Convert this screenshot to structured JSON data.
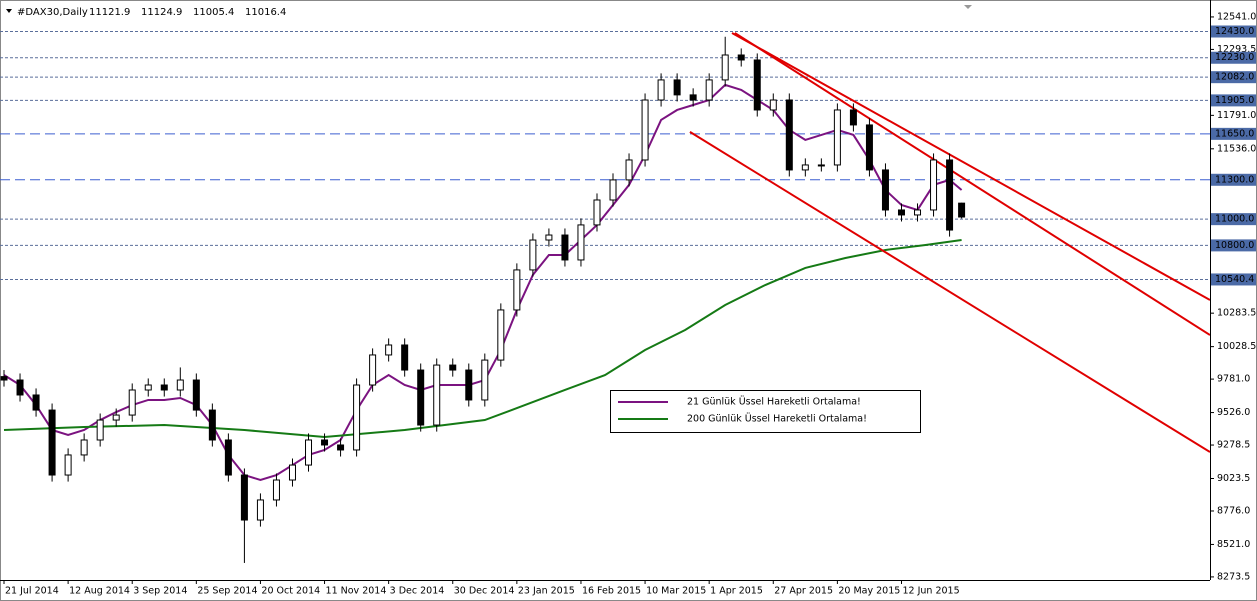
{
  "chart_data": {
    "type": "candlestick",
    "title": "#DAX30,Daily",
    "xlim": [
      -1,
      301
    ],
    "ylim": [
      8250,
      12632
    ],
    "x": [
      0,
      4,
      8,
      12,
      16,
      20,
      24,
      28,
      32,
      36,
      40,
      44,
      48,
      52,
      56,
      60,
      64,
      68,
      72,
      76,
      80,
      84,
      88,
      92,
      96,
      100,
      104,
      108,
      112,
      116,
      120,
      124,
      128,
      132,
      136,
      140,
      144,
      148,
      152,
      156,
      160,
      164,
      168,
      172,
      176,
      180,
      184,
      188,
      192,
      196,
      200,
      204,
      208,
      212,
      216,
      220,
      224,
      228,
      232,
      236,
      239
    ],
    "open": [
      9800,
      9774,
      9660,
      9545,
      9050,
      9203,
      9317,
      9469,
      9507,
      9698,
      9736,
      9698,
      9774,
      9545,
      9317,
      9050,
      8707,
      8860,
      9012,
      9126,
      9317,
      9279,
      9241,
      9736,
      9965,
      10041,
      9850,
      9431,
      9888,
      9850,
      9622,
      9926,
      10308,
      10613,
      10841,
      10879,
      10689,
      10956,
      11146,
      11299,
      11451,
      11908,
      12061,
      11947,
      11908,
      12061,
      12251,
      12213,
      11832,
      11908,
      11375,
      11413,
      11413,
      11832,
      11718,
      11375,
      11070,
      11032,
      11070,
      11451,
      11121.9
    ],
    "high": [
      9850,
      9824,
      9710,
      9595,
      9253,
      9367,
      9519,
      9557,
      9748,
      9786,
      9786,
      9870,
      9824,
      9595,
      9367,
      9100,
      8910,
      9062,
      9176,
      9367,
      9367,
      9329,
      9786,
      10015,
      10091,
      10091,
      9900,
      9938,
      9938,
      9900,
      9976,
      10358,
      10663,
      10891,
      10929,
      10929,
      11006,
      11196,
      11349,
      11501,
      11958,
      12111,
      12111,
      11997,
      12111,
      12390,
      12301,
      12263,
      11958,
      11958,
      11463,
      11463,
      11882,
      11882,
      11768,
      11425,
      11120,
      11120,
      11501,
      11501,
      11124.9
    ],
    "low": [
      9724,
      9610,
      9495,
      9000,
      9000,
      9153,
      9267,
      9419,
      9457,
      9648,
      9648,
      9648,
      9495,
      9267,
      9000,
      8380,
      8657,
      8810,
      8962,
      9076,
      9229,
      9191,
      9191,
      9686,
      9915,
      9800,
      9381,
      9381,
      9800,
      9572,
      9572,
      9876,
      10258,
      10563,
      10791,
      10639,
      10639,
      10906,
      11096,
      11249,
      11401,
      11858,
      11897,
      11858,
      11858,
      12011,
      12163,
      11782,
      11782,
      11325,
      11325,
      11363,
      11363,
      11668,
      11325,
      11020,
      10982,
      10982,
      11020,
      10867,
      11005.4
    ],
    "close": [
      9774,
      9660,
      9545,
      9050,
      9203,
      9317,
      9469,
      9507,
      9698,
      9736,
      9698,
      9774,
      9545,
      9317,
      9050,
      8707,
      8860,
      9012,
      9126,
      9317,
      9279,
      9241,
      9736,
      9965,
      10041,
      9850,
      9431,
      9888,
      9850,
      9622,
      9926,
      10308,
      10613,
      10841,
      10879,
      10689,
      10956,
      11146,
      11299,
      11451,
      11908,
      12061,
      11947,
      11908,
      12061,
      12251,
      12213,
      11832,
      11908,
      11375,
      11413,
      11413,
      11832,
      11718,
      11375,
      11070,
      11032,
      11070,
      11451,
      10917,
      11016.4
    ],
    "series": [
      {
        "name": "21 Günlük Üssel Hareketli Ortalama!",
        "color": "#7b1380",
        "x": [
          0,
          4,
          8,
          12,
          16,
          20,
          24,
          28,
          32,
          36,
          40,
          44,
          48,
          52,
          56,
          60,
          64,
          68,
          72,
          76,
          80,
          84,
          88,
          92,
          96,
          100,
          104,
          108,
          112,
          116,
          120,
          124,
          128,
          132,
          136,
          140,
          144,
          148,
          152,
          156,
          160,
          164,
          168,
          172,
          176,
          180,
          184,
          188,
          192,
          196,
          200,
          204,
          208,
          212,
          216,
          220,
          224,
          228,
          232,
          236,
          239
        ],
        "values": [
          9812,
          9736,
          9583,
          9393,
          9355,
          9393,
          9469,
          9530,
          9583,
          9622,
          9622,
          9637,
          9583,
          9431,
          9203,
          9050,
          9012,
          9050,
          9126,
          9203,
          9241,
          9317,
          9545,
          9736,
          9812,
          9736,
          9698,
          9736,
          9736,
          9736,
          9774,
          10003,
          10308,
          10575,
          10727,
          10727,
          10841,
          10956,
          11108,
          11261,
          11489,
          11756,
          11832,
          11870,
          11908,
          12023,
          11985,
          11908,
          11832,
          11680,
          11604,
          11642,
          11680,
          11642,
          11451,
          11222,
          11108,
          11070,
          11261,
          11299,
          11222
        ]
      },
      {
        "name": "200 Günlük Üssel Hareketli Ortalama!",
        "color": "#157a15",
        "x": [
          0,
          20,
          40,
          60,
          80,
          100,
          120,
          130,
          140,
          150,
          160,
          170,
          180,
          190,
          200,
          210,
          220,
          230,
          239
        ],
        "values": [
          9393,
          9416,
          9431,
          9393,
          9340,
          9393,
          9469,
          9583,
          9698,
          9812,
          10003,
          10155,
          10346,
          10498,
          10628,
          10704,
          10765,
          10803,
          10841
        ]
      }
    ],
    "trendlines": [
      {
        "color": "#e00000",
        "x": [
          181.7,
          301
        ],
        "values": [
          12419,
          10384
        ]
      },
      {
        "color": "#e00000",
        "x": [
          182.4,
          301
        ],
        "values": [
          12419,
          10117
        ]
      },
      {
        "color": "#e00000",
        "x": [
          171.2,
          301
        ],
        "values": [
          11665,
          9225
        ]
      }
    ],
    "levels": [
      {
        "value": 12430,
        "label": "12430.0",
        "style": "dotted"
      },
      {
        "value": 12230,
        "label": "12230.0",
        "style": "dotted"
      },
      {
        "value": 12082,
        "label": "12082.0",
        "style": "dotted"
      },
      {
        "value": 11905,
        "label": "11905.0",
        "style": "dotted"
      },
      {
        "value": 11650,
        "label": "11650.0",
        "style": "dashed"
      },
      {
        "value": 11300,
        "label": "11300.0",
        "style": "dashed"
      },
      {
        "value": 11000,
        "label": "11000.0",
        "style": "dotted"
      },
      {
        "value": 10800,
        "label": "10800.0",
        "style": "dotted"
      },
      {
        "value": 10540.4,
        "label": "10540.4",
        "style": "dotted"
      }
    ],
    "yticks": [
      {
        "value": 12541,
        "label": "12541.0"
      },
      {
        "value": 12293.5,
        "label": "12293.5"
      },
      {
        "value": 11791,
        "label": "11791.0"
      },
      {
        "value": 11536,
        "label": "11536.0"
      },
      {
        "value": 10283.5,
        "label": "10283.5"
      },
      {
        "value": 10028.5,
        "label": "10028.5"
      },
      {
        "value": 9781,
        "label": "9781.0"
      },
      {
        "value": 9526,
        "label": "9526.0"
      },
      {
        "value": 9278.5,
        "label": "9278.5"
      },
      {
        "value": 9023.5,
        "label": "9023.5"
      },
      {
        "value": 8776,
        "label": "8776.0"
      },
      {
        "value": 8521,
        "label": "8521.0"
      },
      {
        "value": 8273.5,
        "label": "8273.5"
      }
    ],
    "xticks": [
      {
        "value": 0,
        "label": "21 Jul 2014"
      },
      {
        "value": 16,
        "label": "12 Aug 2014"
      },
      {
        "value": 32,
        "label": "3 Sep 2014"
      },
      {
        "value": 48,
        "label": "25 Sep 2014"
      },
      {
        "value": 64,
        "label": "20 Oct 2014"
      },
      {
        "value": 80,
        "label": "11 Nov 2014"
      },
      {
        "value": 96,
        "label": "3 Dec 2014"
      },
      {
        "value": 112,
        "label": "30 Dec 2014"
      },
      {
        "value": 128,
        "label": "23 Jan 2015"
      },
      {
        "value": 144,
        "label": "16 Feb 2015"
      },
      {
        "value": 160,
        "label": "10 Mar 2015"
      },
      {
        "value": 176,
        "label": "1 Apr 2015"
      },
      {
        "value": 192,
        "label": "27 Apr 2015"
      },
      {
        "value": 208,
        "label": "20 May 2015"
      },
      {
        "value": 224,
        "label": "12 Jun 2015"
      }
    ],
    "grid": false
  }
}
